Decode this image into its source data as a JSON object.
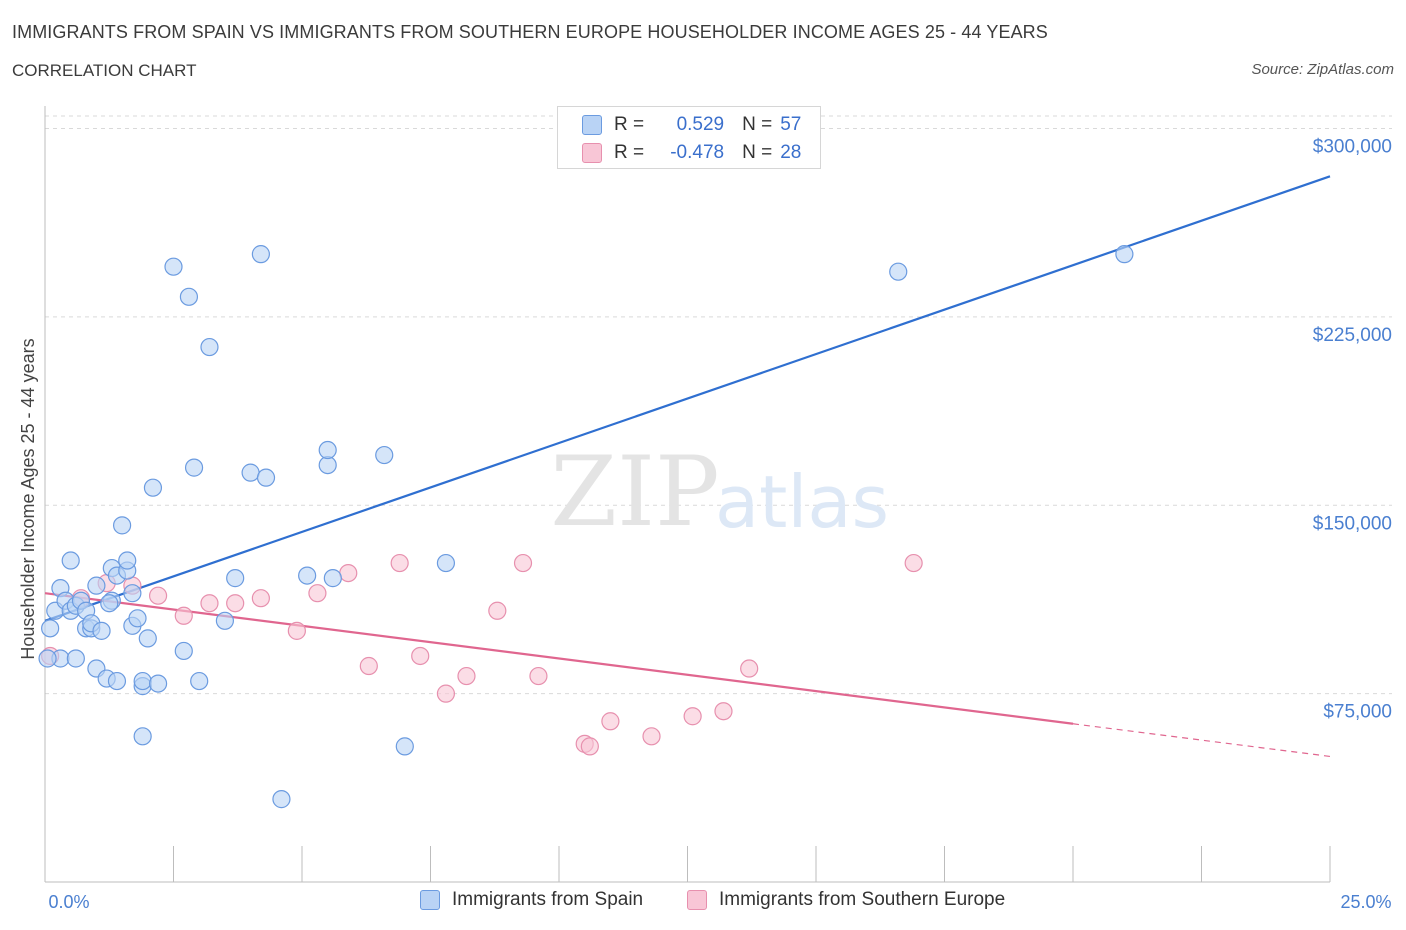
{
  "header": {
    "title": "IMMIGRANTS FROM SPAIN VS IMMIGRANTS FROM SOUTHERN EUROPE HOUSEHOLDER INCOME AGES 25 - 44 YEARS",
    "subtitle": "CORRELATION CHART",
    "source": "Source: ZipAtlas.com"
  },
  "watermark": {
    "zip": "ZIP",
    "atlas": "atlas"
  },
  "legend": {
    "r_label": "R =",
    "n_label": "N =",
    "rows": [
      {
        "r": "0.529",
        "n": "57"
      },
      {
        "r": "-0.478",
        "n": "28"
      }
    ]
  },
  "colors": {
    "spain_fill": "#b9d3f5",
    "spain_stroke": "#6b9be0",
    "spain_line": "#2f6fd0",
    "southern_fill": "#f8c6d6",
    "southern_stroke": "#e790ae",
    "southern_line": "#e0668f",
    "axis_label": "#4a7fd0",
    "grid": "#d9d9d9"
  },
  "chart_data": {
    "type": "scatter",
    "title": "IMMIGRANTS FROM SPAIN VS IMMIGRANTS FROM SOUTHERN EUROPE HOUSEHOLDER INCOME AGES 25 - 44 YEARS",
    "xlabel": "",
    "ylabel": "Householder Income Ages 25 - 44 years",
    "xlim": [
      0,
      25
    ],
    "ylim": [
      0,
      305000
    ],
    "x_tick_labels": [
      "0.0%",
      "25.0%"
    ],
    "y_ticks": [
      75000,
      150000,
      225000,
      300000
    ],
    "y_tick_labels": [
      "$75,000",
      "$150,000",
      "$225,000",
      "$300,000"
    ],
    "grid": true,
    "legend_position": "top-center",
    "series": [
      {
        "name": "Immigrants from Spain",
        "color": "#6b9be0",
        "trend": {
          "x": [
            0,
            25
          ],
          "y": [
            104000,
            281000
          ]
        },
        "points": [
          [
            0.1,
            101000
          ],
          [
            0.2,
            108000
          ],
          [
            0.3,
            117000
          ],
          [
            0.3,
            89000
          ],
          [
            0.4,
            112000
          ],
          [
            0.5,
            128000
          ],
          [
            0.5,
            108000
          ],
          [
            0.6,
            89000
          ],
          [
            0.6,
            110000
          ],
          [
            0.8,
            101000
          ],
          [
            0.7,
            112000
          ],
          [
            0.8,
            108000
          ],
          [
            0.9,
            101000
          ],
          [
            0.9,
            103000
          ],
          [
            1.0,
            85000
          ],
          [
            1.0,
            118000
          ],
          [
            1.1,
            100000
          ],
          [
            1.2,
            81000
          ],
          [
            1.3,
            125000
          ],
          [
            1.3,
            112000
          ],
          [
            1.4,
            122000
          ],
          [
            1.4,
            80000
          ],
          [
            1.5,
            142000
          ],
          [
            1.6,
            124000
          ],
          [
            1.6,
            128000
          ],
          [
            1.7,
            102000
          ],
          [
            1.7,
            115000
          ],
          [
            1.8,
            105000
          ],
          [
            1.9,
            58000
          ],
          [
            1.9,
            78000
          ],
          [
            1.9,
            80000
          ],
          [
            2.0,
            97000
          ],
          [
            2.1,
            157000
          ],
          [
            2.2,
            79000
          ],
          [
            2.5,
            245000
          ],
          [
            2.7,
            92000
          ],
          [
            2.8,
            233000
          ],
          [
            2.9,
            165000
          ],
          [
            3.0,
            80000
          ],
          [
            3.2,
            213000
          ],
          [
            3.5,
            104000
          ],
          [
            3.7,
            121000
          ],
          [
            4.0,
            163000
          ],
          [
            4.2,
            250000
          ],
          [
            4.3,
            161000
          ],
          [
            4.6,
            33000
          ],
          [
            5.1,
            122000
          ],
          [
            5.5,
            166000
          ],
          [
            5.5,
            172000
          ],
          [
            5.6,
            121000
          ],
          [
            6.6,
            170000
          ],
          [
            7.0,
            54000
          ],
          [
            7.8,
            127000
          ],
          [
            16.6,
            243000
          ],
          [
            21.0,
            250000
          ],
          [
            0.05,
            89000
          ],
          [
            1.25,
            111000
          ]
        ]
      },
      {
        "name": "Immigrants from Southern Europe",
        "color": "#e790ae",
        "trend": {
          "x": [
            0,
            20
          ],
          "y": [
            115000,
            63000
          ]
        },
        "trend_extension": {
          "x": [
            20,
            25
          ],
          "y": [
            63000,
            50000
          ]
        },
        "points": [
          [
            0.1,
            90000
          ],
          [
            0.7,
            113000
          ],
          [
            1.2,
            119000
          ],
          [
            1.7,
            118000
          ],
          [
            2.2,
            114000
          ],
          [
            2.7,
            106000
          ],
          [
            3.2,
            111000
          ],
          [
            3.7,
            111000
          ],
          [
            4.2,
            113000
          ],
          [
            4.9,
            100000
          ],
          [
            5.3,
            115000
          ],
          [
            5.9,
            123000
          ],
          [
            6.3,
            86000
          ],
          [
            6.9,
            127000
          ],
          [
            7.3,
            90000
          ],
          [
            7.8,
            75000
          ],
          [
            8.2,
            82000
          ],
          [
            8.8,
            108000
          ],
          [
            9.3,
            127000
          ],
          [
            9.6,
            82000
          ],
          [
            10.5,
            55000
          ],
          [
            10.6,
            54000
          ],
          [
            11.0,
            64000
          ],
          [
            11.8,
            58000
          ],
          [
            12.6,
            66000
          ],
          [
            13.2,
            68000
          ],
          [
            13.7,
            85000
          ],
          [
            16.9,
            127000
          ]
        ]
      }
    ]
  },
  "bottom_legend": {
    "items": [
      {
        "label": "Immigrants from Spain"
      },
      {
        "label": "Immigrants from Southern Europe"
      }
    ]
  }
}
